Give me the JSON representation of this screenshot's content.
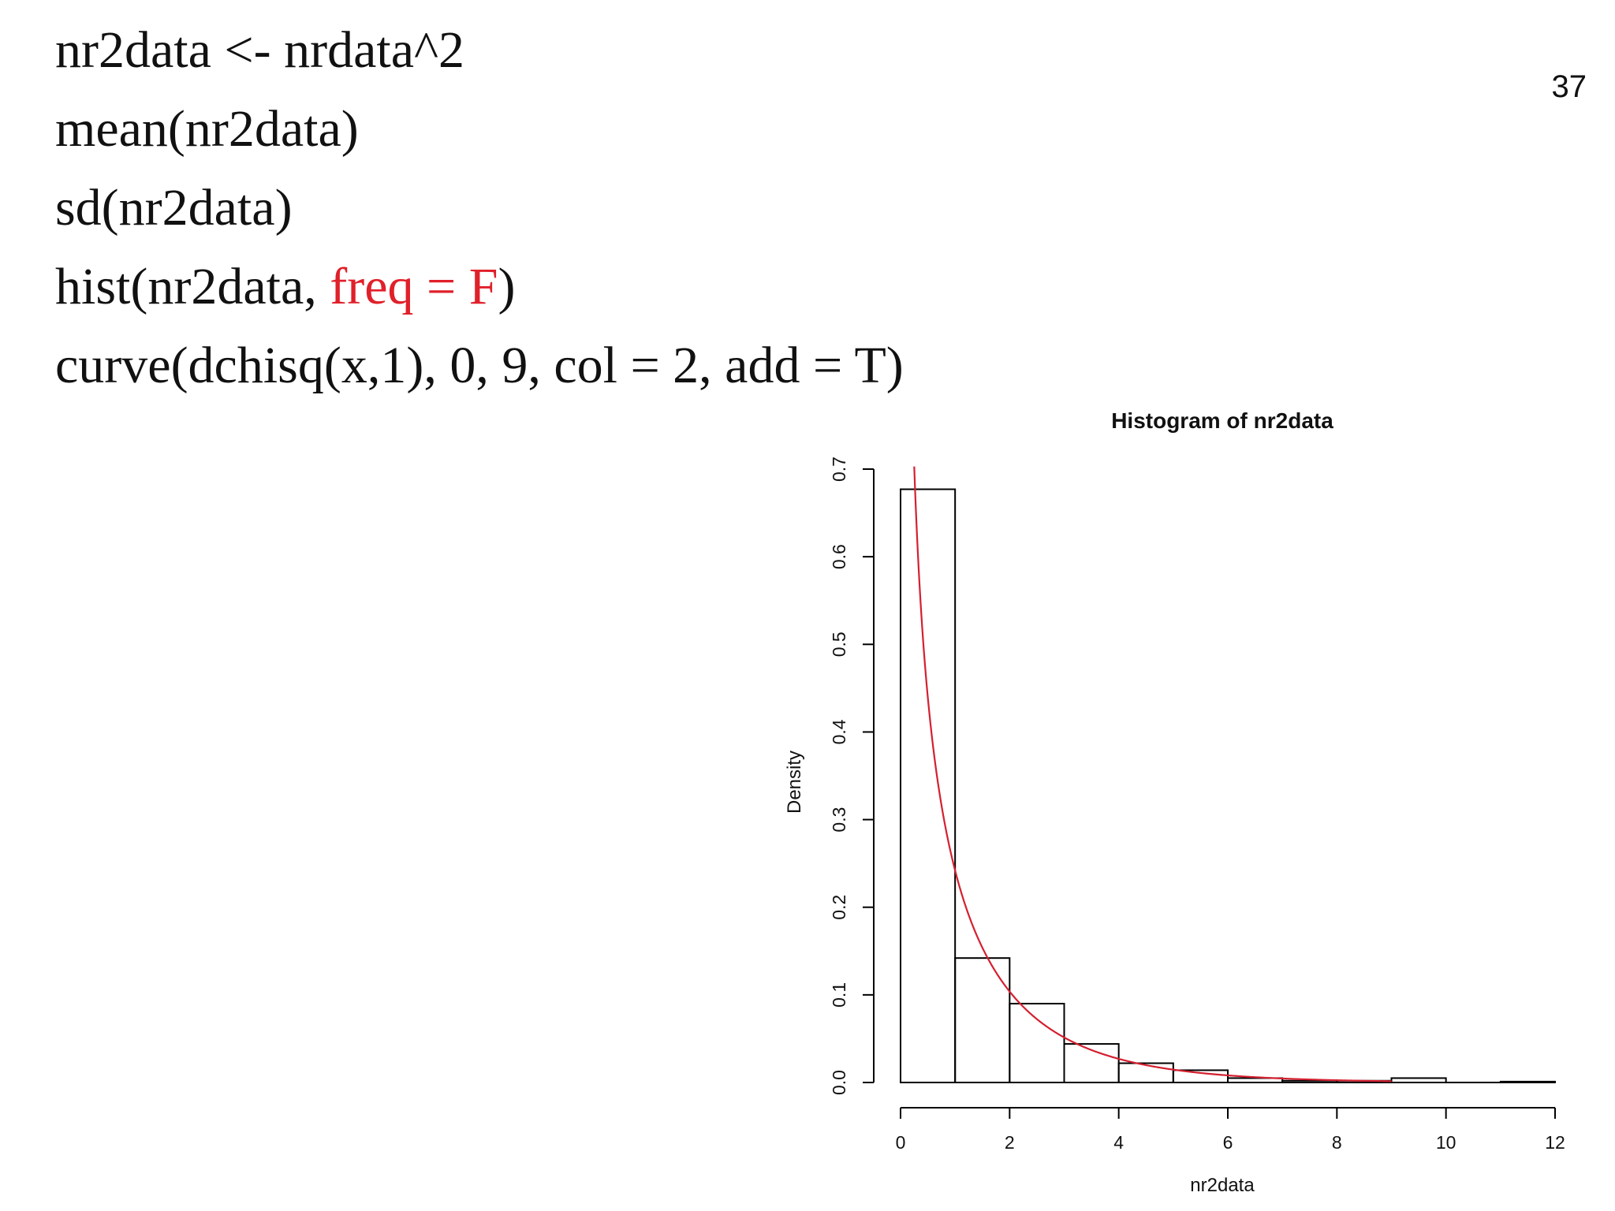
{
  "slide": {
    "number": "37",
    "code_lines": [
      [
        {
          "text": "nr2data <- nrdata^2",
          "highlight": false
        }
      ],
      [
        {
          "text": "mean(nr2data)",
          "highlight": false
        }
      ],
      [
        {
          "text": "sd(nr2data)",
          "highlight": false
        }
      ],
      [
        {
          "text": "hist(nr2data, ",
          "highlight": false
        },
        {
          "text": "freq = F",
          "highlight": true
        },
        {
          "text": ")",
          "highlight": false
        }
      ],
      [
        {
          "text": "curve(dchisq(x,1), 0, 9, col = 2, add = T)",
          "highlight": false
        }
      ]
    ],
    "highlight_color": "#e0202a"
  },
  "chart_data": {
    "type": "bar",
    "title": "Histogram of nr2data",
    "xlabel": "nr2data",
    "ylabel": "Density",
    "xlim": [
      0,
      12
    ],
    "ylim": [
      0,
      0.7
    ],
    "x_ticks": [
      0,
      2,
      4,
      6,
      8,
      10,
      12
    ],
    "y_ticks": [
      "0.0",
      "0.1",
      "0.2",
      "0.3",
      "0.4",
      "0.5",
      "0.6",
      "0.7"
    ],
    "bins": [
      {
        "from": 0,
        "to": 1,
        "density": 0.677
      },
      {
        "from": 1,
        "to": 2,
        "density": 0.142
      },
      {
        "from": 2,
        "to": 3,
        "density": 0.09
      },
      {
        "from": 3,
        "to": 4,
        "density": 0.044
      },
      {
        "from": 4,
        "to": 5,
        "density": 0.022
      },
      {
        "from": 5,
        "to": 6,
        "density": 0.014
      },
      {
        "from": 6,
        "to": 7,
        "density": 0.005
      },
      {
        "from": 7,
        "to": 8,
        "density": 0.002
      },
      {
        "from": 8,
        "to": 9,
        "density": 0.002
      },
      {
        "from": 9,
        "to": 10,
        "density": 0.005
      },
      {
        "from": 10,
        "to": 11,
        "density": 0.0
      },
      {
        "from": 11,
        "to": 12,
        "density": 0.001
      }
    ],
    "curve": {
      "function": "dchisq(x,1)",
      "x_range": [
        0,
        9
      ],
      "color": "#d42030"
    },
    "grid": false,
    "legend": "none"
  }
}
